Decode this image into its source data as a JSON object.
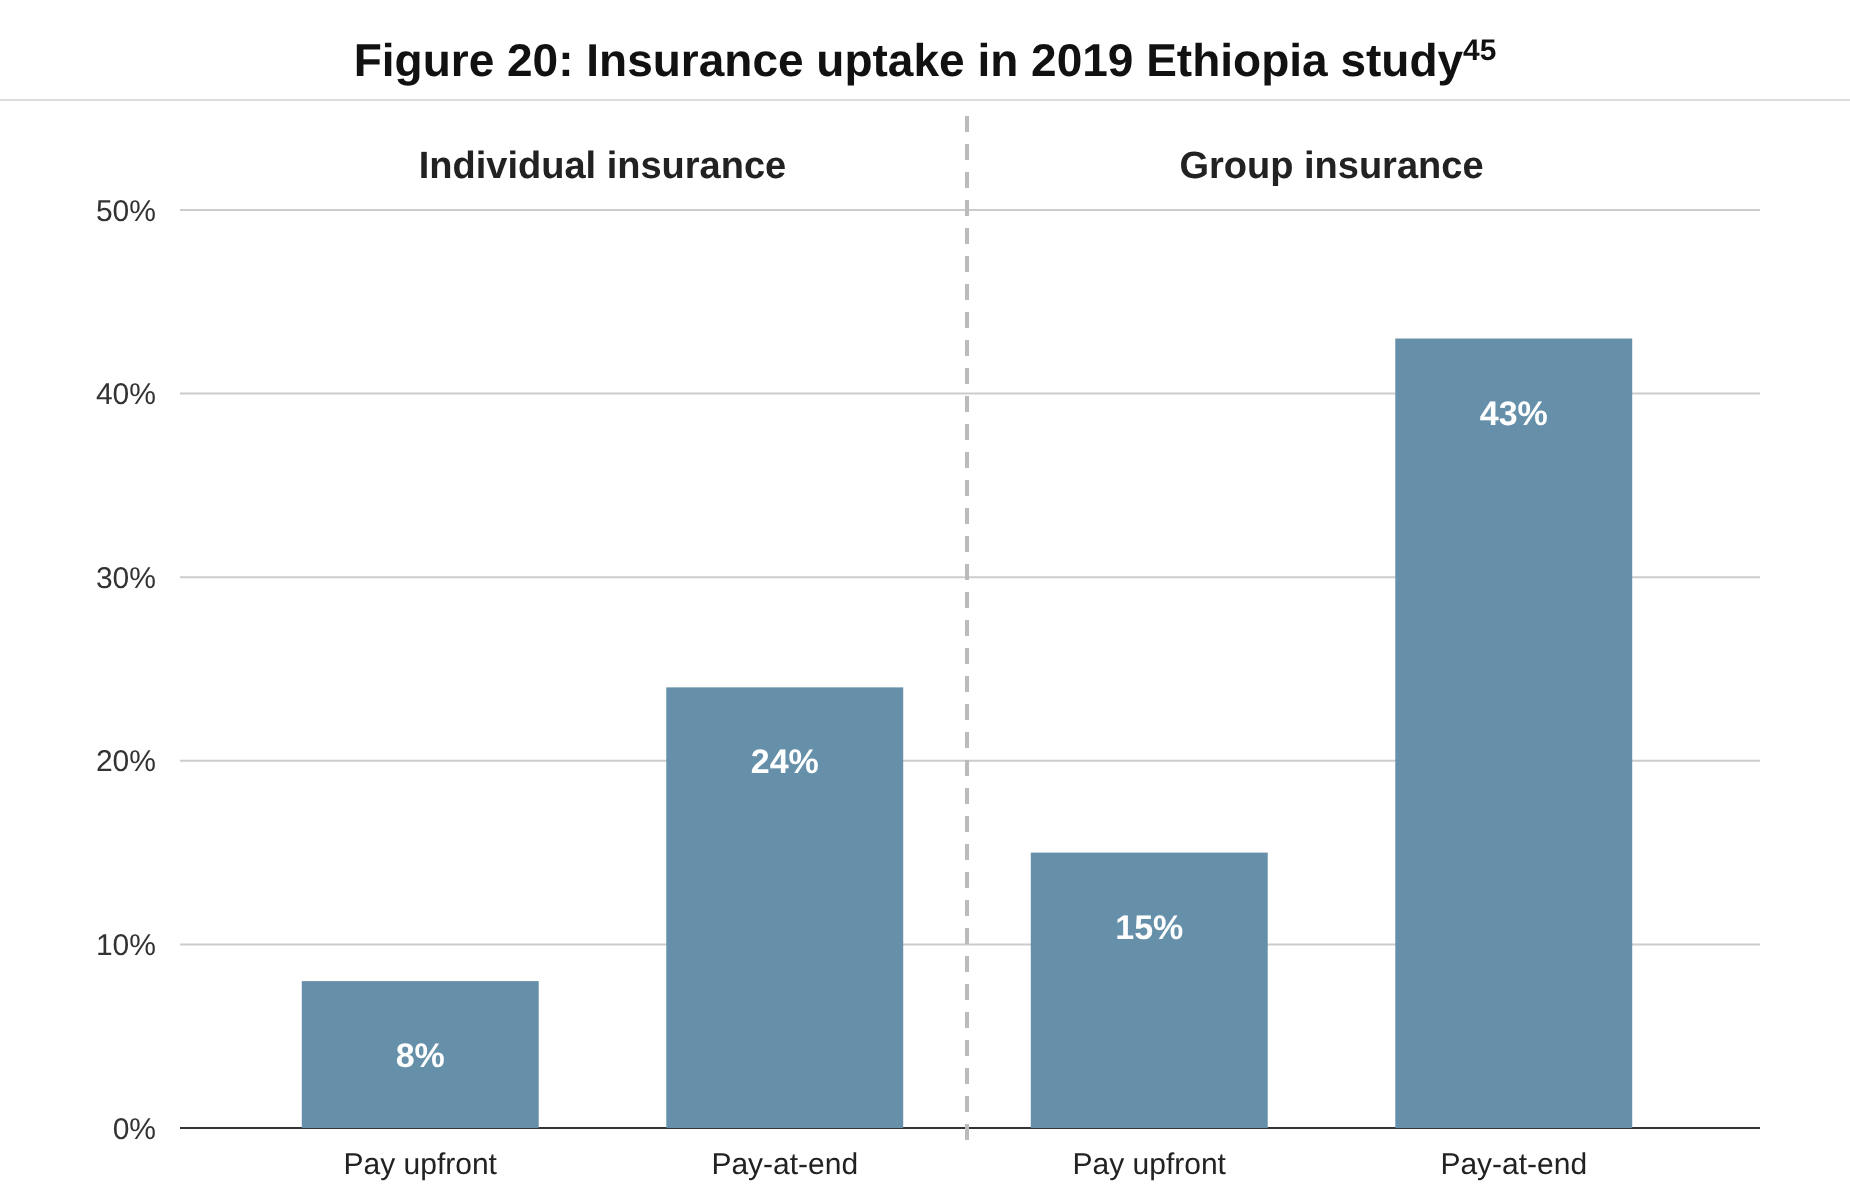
{
  "chart_data": {
    "type": "bar",
    "title": "Figure 20: Insurance uptake in 2019 Ethiopia study$^{45}$",
    "categories": [
      "Pay upfront",
      "Pay-at-end",
      "Pay upfront",
      "Pay-at-end"
    ],
    "values": [
      8,
      24,
      15,
      43
    ],
    "value_labels": [
      "8%",
      "24%",
      "15%",
      "43%"
    ],
    "color": "#6690aa",
    "ylim": [
      0,
      50
    ],
    "yticks": [
      {
        "value": 0,
        "label": "0%"
      },
      {
        "value": 10,
        "label": "10%"
      },
      {
        "value": 20,
        "label": "20%"
      },
      {
        "value": 30,
        "label": "30%"
      },
      {
        "value": 40,
        "label": "40%"
      },
      {
        "value": 50,
        "label": "50%"
      }
    ],
    "grid": "y",
    "annotations": [
      "Individual insurance",
      "Group insurance"
    ]
  }
}
